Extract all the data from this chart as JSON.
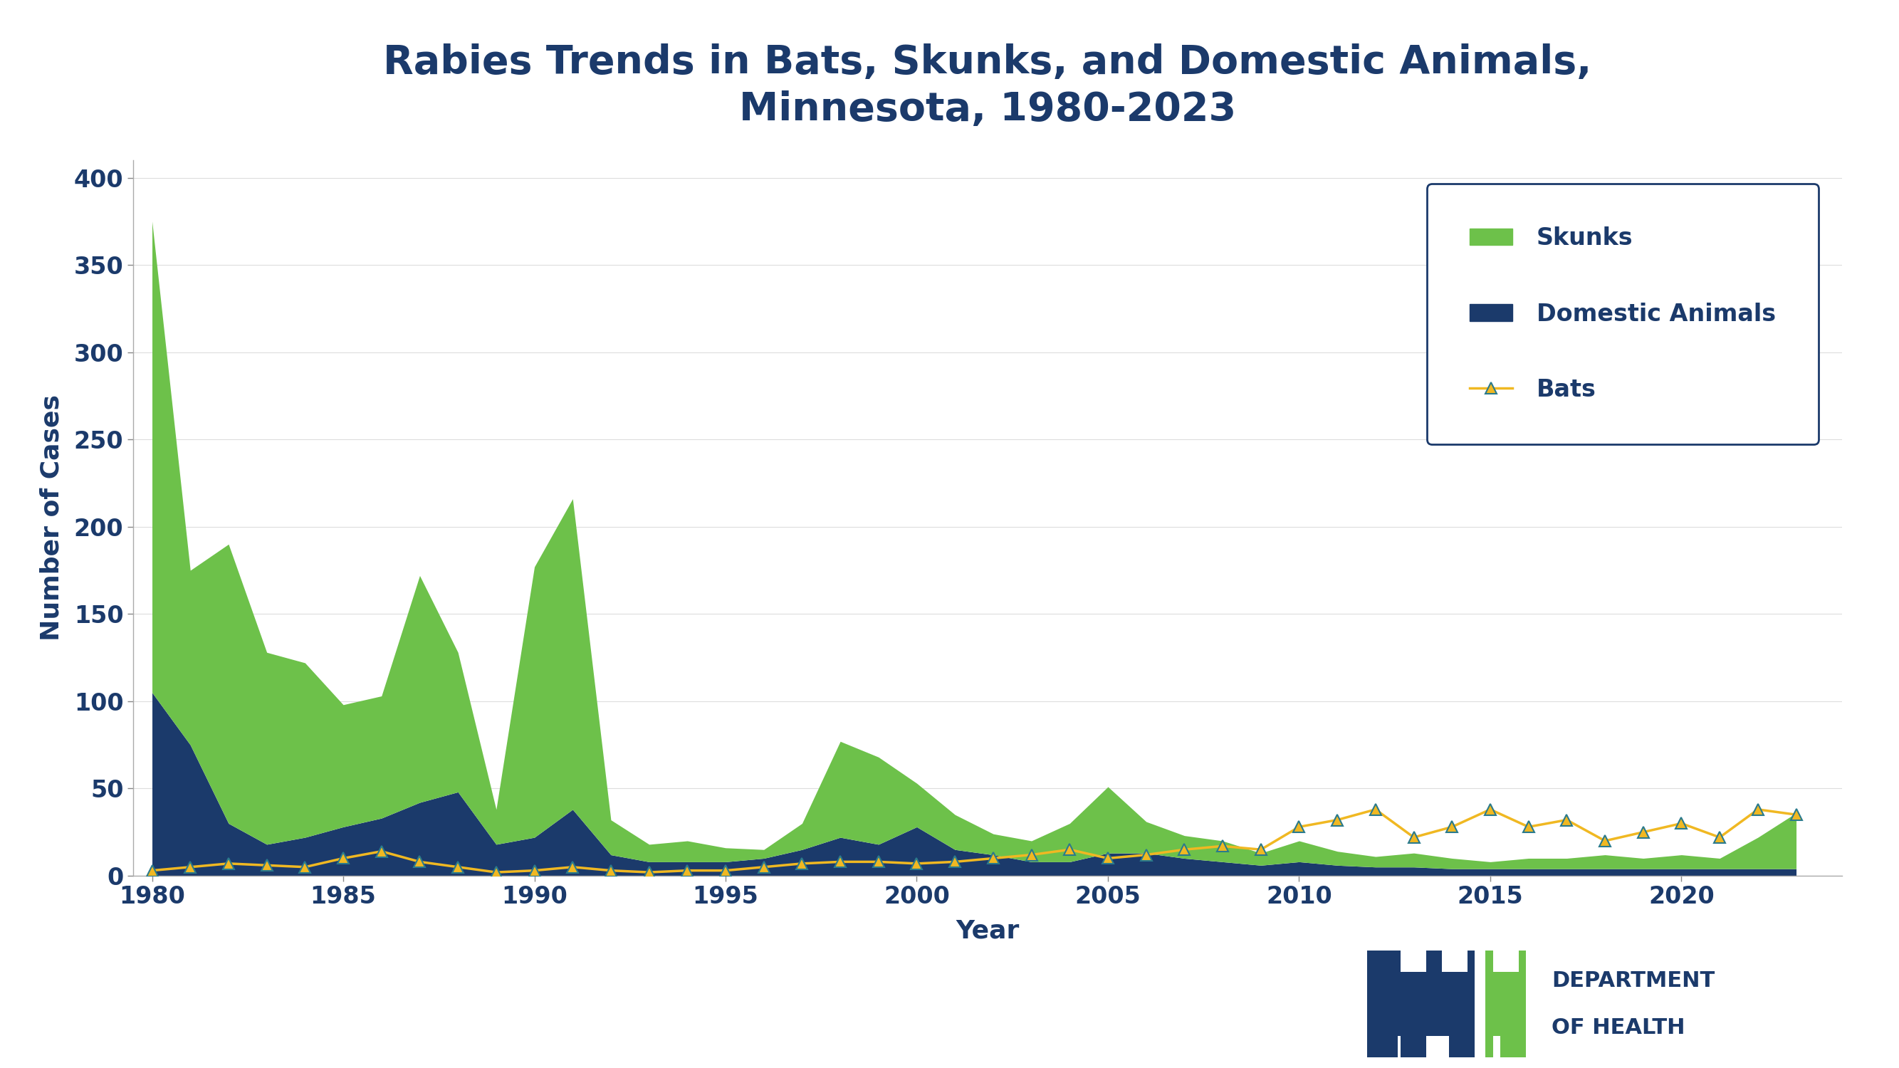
{
  "title": "Rabies Trends in Bats, Skunks, and Domestic Animals,\nMinnesota, 1980-2023",
  "title_color": "#1B3A6B",
  "xlabel": "Year",
  "ylabel": "Number of Cases",
  "background_color": "#FFFFFF",
  "label_color": "#1B3A6B",
  "skunk_color": "#6DC14A",
  "domestic_color": "#1B3A6B",
  "bat_line_color": "#F0B822",
  "bat_marker_color": "#2A7A8C",
  "years": [
    1980,
    1981,
    1982,
    1983,
    1984,
    1985,
    1986,
    1987,
    1988,
    1989,
    1990,
    1991,
    1992,
    1993,
    1994,
    1995,
    1996,
    1997,
    1998,
    1999,
    2000,
    2001,
    2002,
    2003,
    2004,
    2005,
    2006,
    2007,
    2008,
    2009,
    2010,
    2011,
    2012,
    2013,
    2014,
    2015,
    2016,
    2017,
    2018,
    2019,
    2020,
    2021,
    2022,
    2023
  ],
  "skunks": [
    270,
    100,
    160,
    110,
    100,
    70,
    70,
    130,
    80,
    20,
    155,
    178,
    20,
    10,
    12,
    8,
    5,
    15,
    55,
    50,
    25,
    20,
    12,
    12,
    22,
    38,
    18,
    13,
    12,
    7,
    12,
    8,
    6,
    8,
    6,
    4,
    6,
    6,
    8,
    6,
    8,
    6,
    18,
    32
  ],
  "domestic": [
    105,
    75,
    30,
    18,
    22,
    28,
    33,
    42,
    48,
    18,
    22,
    38,
    12,
    8,
    8,
    8,
    10,
    15,
    22,
    18,
    28,
    15,
    12,
    8,
    8,
    13,
    13,
    10,
    8,
    6,
    8,
    6,
    5,
    5,
    4,
    4,
    4,
    4,
    4,
    4,
    4,
    4,
    4,
    4
  ],
  "bats": [
    3,
    5,
    7,
    6,
    5,
    10,
    14,
    8,
    5,
    2,
    3,
    5,
    3,
    2,
    3,
    3,
    5,
    7,
    8,
    8,
    7,
    8,
    10,
    12,
    15,
    10,
    12,
    15,
    17,
    15,
    28,
    32,
    38,
    22,
    28,
    38,
    28,
    32,
    20,
    25,
    30,
    22,
    38,
    35
  ],
  "ylim": [
    0,
    410
  ],
  "yticks": [
    0,
    50,
    100,
    150,
    200,
    250,
    300,
    350,
    400
  ],
  "xticks": [
    1980,
    1985,
    1990,
    1995,
    2000,
    2005,
    2010,
    2015,
    2020
  ],
  "legend_labels": [
    "Skunks",
    "Domestic Animals",
    "Bats"
  ],
  "title_fontsize": 40,
  "label_fontsize": 26,
  "tick_fontsize": 24,
  "legend_fontsize": 24,
  "dept_text_color": "#1B3A6B",
  "mn_navy": "#1B3A6B",
  "mn_green": "#6DC14A"
}
